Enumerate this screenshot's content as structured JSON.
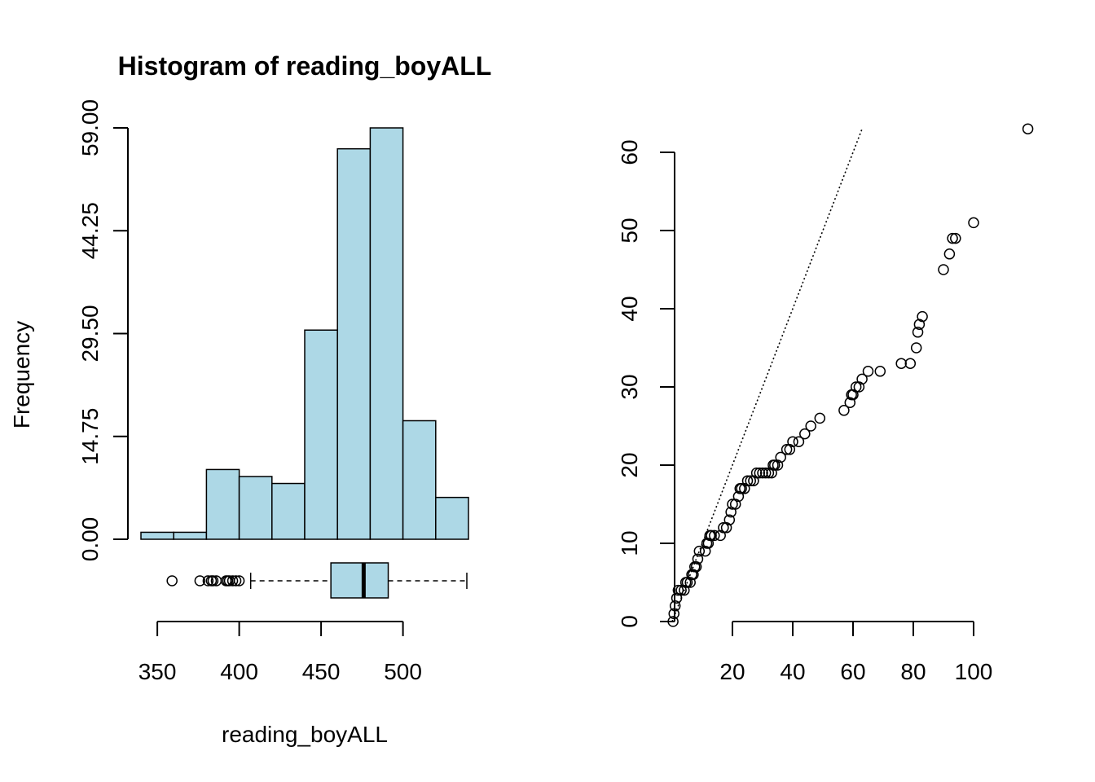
{
  "colors": {
    "bar_fill": "#add8e6",
    "stroke": "#000000"
  },
  "chart_data": [
    {
      "type": "bar",
      "title": "Histogram of reading_boyALL",
      "xlabel": "reading_boyALL",
      "ylabel": "Frequency",
      "bin_edges": [
        340,
        360,
        380,
        400,
        420,
        440,
        460,
        480,
        500,
        520,
        540
      ],
      "values": [
        1,
        1,
        10,
        9,
        8,
        30,
        56,
        59,
        17,
        6
      ],
      "xticks": [
        350,
        400,
        450,
        500
      ],
      "xtick_labels": [
        "350",
        "400",
        "450",
        "500"
      ],
      "yticks": [
        0,
        14.75,
        29.5,
        44.25,
        59
      ],
      "ytick_labels": [
        "0.00",
        "14.75",
        "29.50",
        "44.25",
        "59.00"
      ],
      "ylim": [
        0,
        59
      ],
      "boxplot": {
        "min": 407,
        "q1": 456,
        "median": 476,
        "q3": 491,
        "max": 539,
        "outliers": [
          359,
          376,
          381,
          383,
          384,
          386,
          392,
          393,
          394,
          396,
          398,
          400
        ]
      }
    },
    {
      "type": "scatter",
      "title": "",
      "xlabel": "",
      "ylabel": "",
      "xticks": [
        20,
        40,
        60,
        80,
        100
      ],
      "xtick_labels": [
        "20",
        "40",
        "60",
        "80",
        "100"
      ],
      "yticks": [
        0,
        10,
        20,
        30,
        40,
        50,
        60
      ],
      "ytick_labels": [
        "0",
        "10",
        "20",
        "30",
        "40",
        "50",
        "60"
      ],
      "reference_line": {
        "slope": 1,
        "intercept": 0,
        "style": "dotted"
      },
      "points": [
        [
          0.3,
          0
        ],
        [
          0.6,
          1
        ],
        [
          1,
          2
        ],
        [
          1.5,
          3
        ],
        [
          2,
          4
        ],
        [
          3,
          4
        ],
        [
          4,
          4
        ],
        [
          4.5,
          5
        ],
        [
          5,
          5
        ],
        [
          6,
          5
        ],
        [
          6.5,
          6
        ],
        [
          7,
          6
        ],
        [
          7.5,
          7
        ],
        [
          8,
          7
        ],
        [
          8.5,
          8
        ],
        [
          9,
          9
        ],
        [
          11,
          9
        ],
        [
          11.5,
          10
        ],
        [
          12,
          10
        ],
        [
          12.5,
          11
        ],
        [
          13,
          11
        ],
        [
          14,
          11
        ],
        [
          16,
          11
        ],
        [
          17,
          12
        ],
        [
          18,
          12
        ],
        [
          19,
          13
        ],
        [
          19.5,
          14
        ],
        [
          20,
          15
        ],
        [
          21,
          15
        ],
        [
          22,
          16
        ],
        [
          22.5,
          17
        ],
        [
          23,
          17
        ],
        [
          24,
          17
        ],
        [
          25,
          18
        ],
        [
          26,
          18
        ],
        [
          27,
          18
        ],
        [
          28,
          19
        ],
        [
          29,
          19
        ],
        [
          30,
          19
        ],
        [
          31,
          19
        ],
        [
          32,
          19
        ],
        [
          33,
          19
        ],
        [
          33.5,
          20
        ],
        [
          34,
          20
        ],
        [
          35,
          20
        ],
        [
          36,
          21
        ],
        [
          38,
          22
        ],
        [
          39,
          22
        ],
        [
          40,
          23
        ],
        [
          42,
          23
        ],
        [
          44,
          24
        ],
        [
          46,
          25
        ],
        [
          49,
          26
        ],
        [
          57,
          27
        ],
        [
          59,
          28
        ],
        [
          59.5,
          29
        ],
        [
          60,
          29
        ],
        [
          61,
          30
        ],
        [
          62,
          30
        ],
        [
          63,
          31
        ],
        [
          65,
          32
        ],
        [
          69,
          32
        ],
        [
          76,
          33
        ],
        [
          79,
          33
        ],
        [
          81,
          35
        ],
        [
          81.5,
          37
        ],
        [
          82,
          38
        ],
        [
          83,
          39
        ],
        [
          90,
          45
        ],
        [
          92,
          47
        ],
        [
          93,
          49
        ],
        [
          94,
          49
        ],
        [
          100,
          51
        ],
        [
          118,
          63
        ]
      ]
    }
  ]
}
